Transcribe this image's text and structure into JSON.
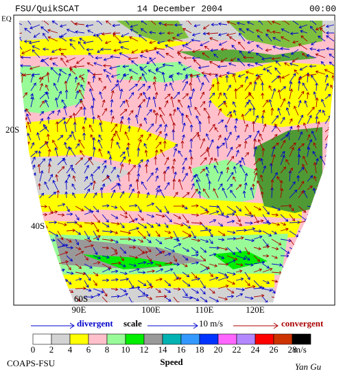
{
  "header": {
    "product": "FSU/QuikSCAT",
    "date": "14 December 2004",
    "time": "00:00"
  },
  "map": {
    "lat_labels": [
      "EQ",
      "20S",
      "40S",
      "60S"
    ],
    "lon_labels": [
      "90E",
      "100E",
      "110E",
      "120E"
    ]
  },
  "legend": {
    "divergent": "divergent",
    "scale": "scale",
    "scale_value": "10 m/s",
    "convergent": "convergent"
  },
  "colorbar": {
    "ticks": [
      0,
      2,
      4,
      6,
      8,
      10,
      12,
      14,
      16,
      18,
      20,
      22,
      24,
      26,
      28
    ],
    "unit": "m/s",
    "title": "Speed",
    "colors": [
      "#ffffff",
      "#d3d3d3",
      "#ffff00",
      "#ffc0cb",
      "#98fb98",
      "#00ee00",
      "#999999",
      "#00b2b2",
      "#3399ff",
      "#0033ff",
      "#ff66ff",
      "#b388ff",
      "#ff0000",
      "#cc3300",
      "#000000"
    ]
  },
  "footer": {
    "left": "COAPS-FSU",
    "right": "Yan Gu"
  }
}
